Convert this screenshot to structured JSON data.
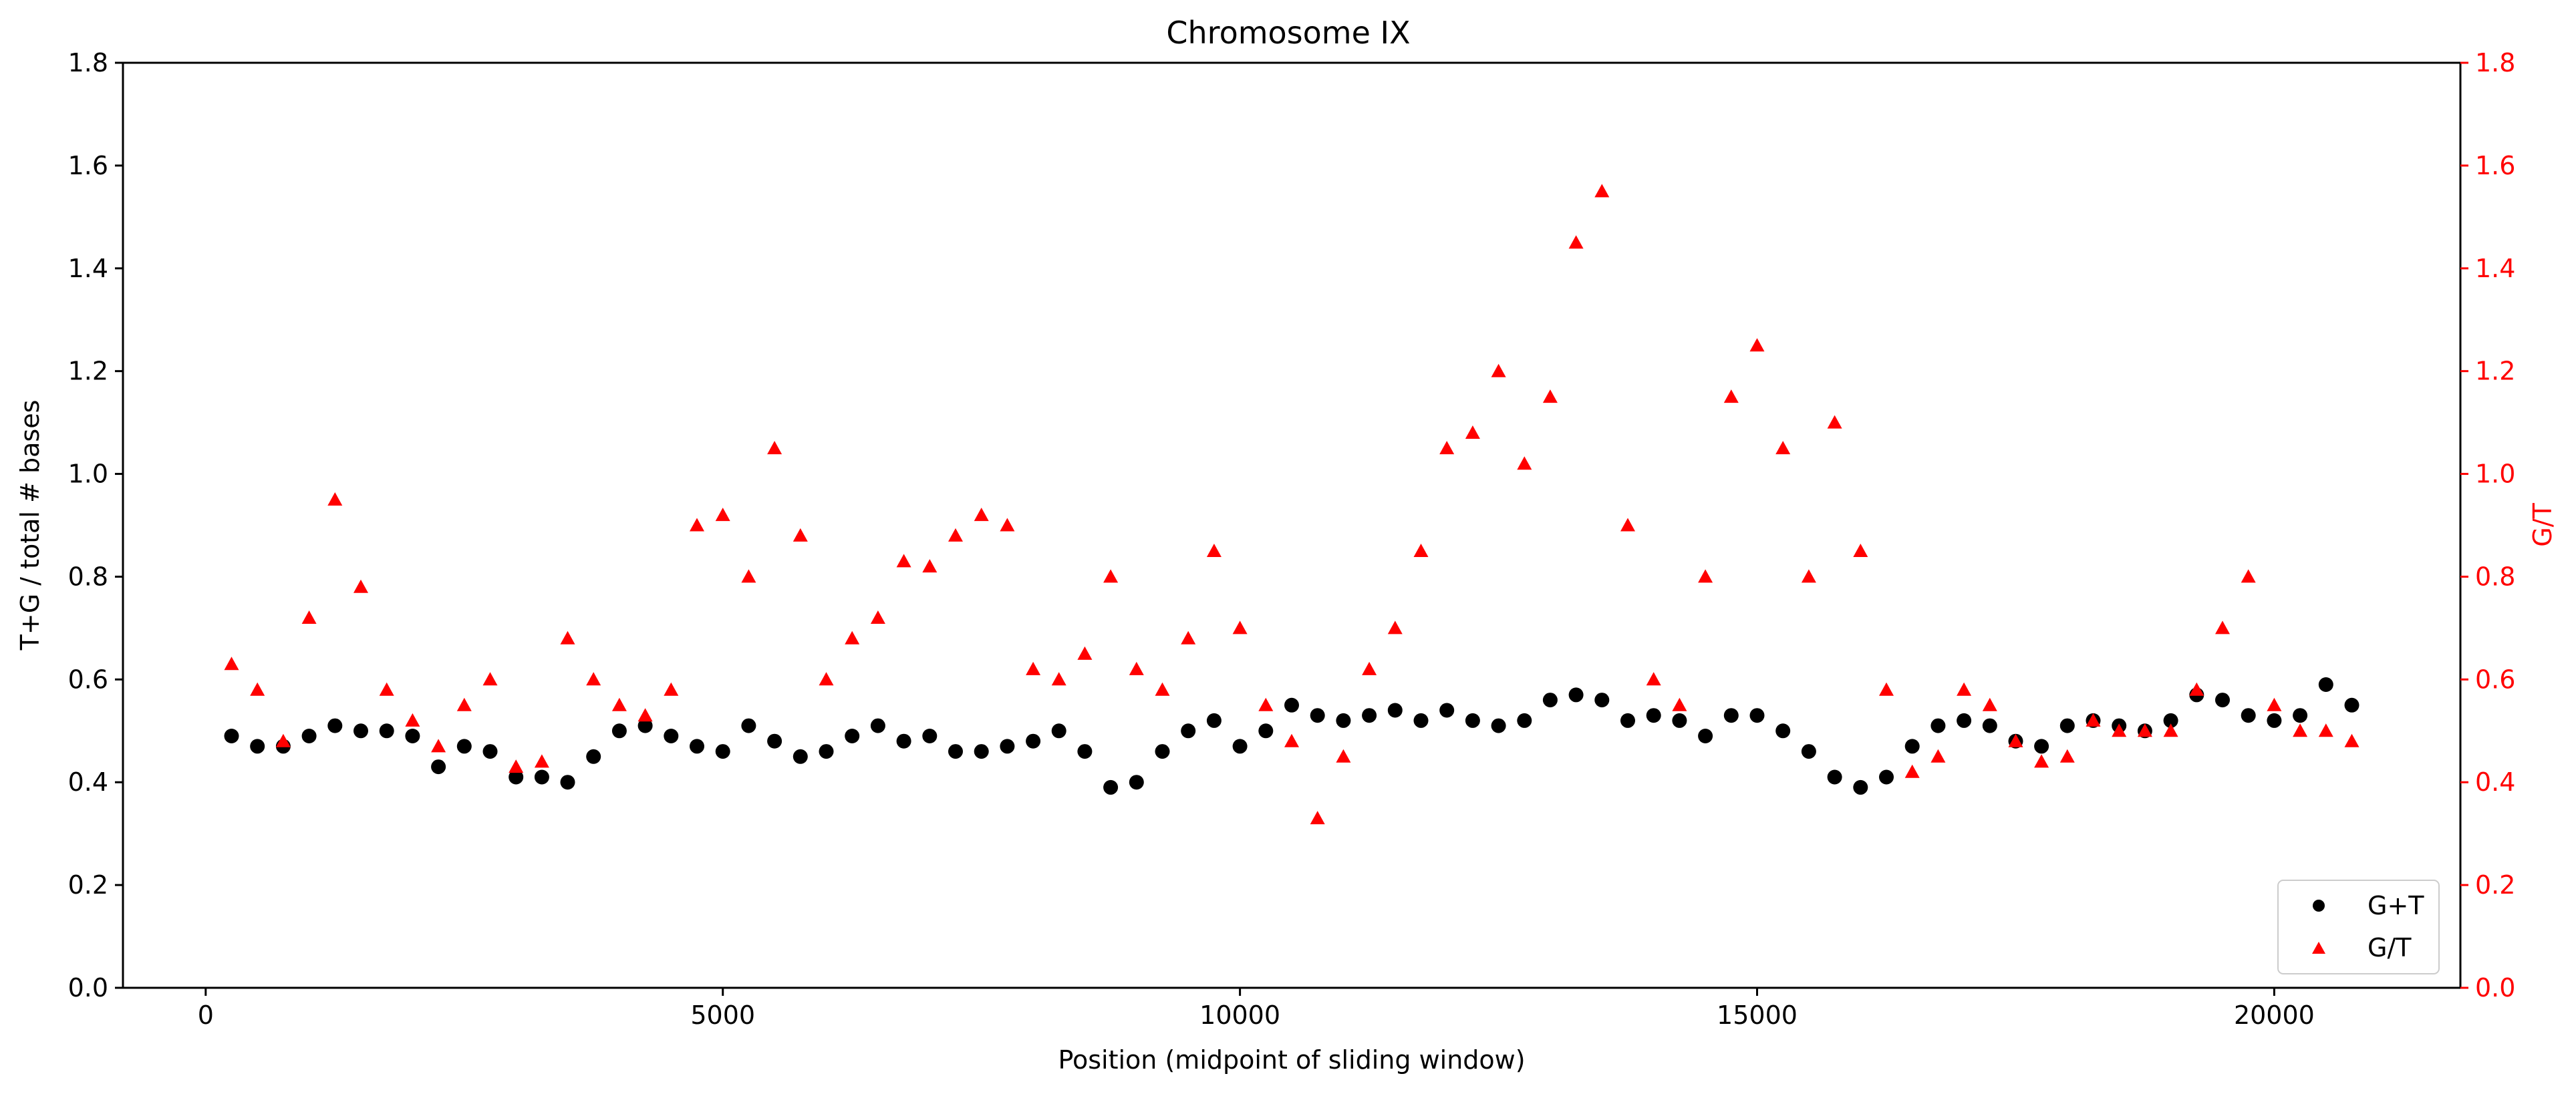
{
  "chart_data": {
    "type": "scatter",
    "title": "Chromosome IX",
    "xlabel": "Position (midpoint of sliding window)",
    "ylabel_left": "T+G / total # bases",
    "ylabel_right": "G/T",
    "xlim": [
      -800,
      21800
    ],
    "ylim": [
      0,
      1.8
    ],
    "x_ticks": [
      0,
      5000,
      10000,
      15000,
      20000
    ],
    "y_ticks": [
      0.0,
      0.2,
      0.4,
      0.6,
      0.8,
      1.0,
      1.2,
      1.4,
      1.6,
      1.8
    ],
    "right_axis_color": "#ff0000",
    "legend_position": "lower-right",
    "series": [
      {
        "name": "G+T",
        "marker": "circle",
        "color": "#000000",
        "axis": "left",
        "x": [
          250,
          500,
          750,
          1000,
          1250,
          1500,
          1750,
          2000,
          2250,
          2500,
          2750,
          3000,
          3250,
          3500,
          3750,
          4000,
          4250,
          4500,
          4750,
          5000,
          5250,
          5500,
          5750,
          6000,
          6250,
          6500,
          6750,
          7000,
          7250,
          7500,
          7750,
          8000,
          8250,
          8500,
          8750,
          9000,
          9250,
          9500,
          9750,
          10000,
          10250,
          10500,
          10750,
          11000,
          11250,
          11500,
          11750,
          12000,
          12250,
          12500,
          12750,
          13000,
          13250,
          13500,
          13750,
          14000,
          14250,
          14500,
          14750,
          15000,
          15250,
          15500,
          15750,
          16000,
          16250,
          16500,
          16750,
          17000,
          17250,
          17500,
          17750,
          18000,
          18250,
          18500,
          18750,
          19000,
          19250,
          19500,
          19750,
          20000,
          20250,
          20500,
          20750
        ],
        "y": [
          0.49,
          0.47,
          0.47,
          0.49,
          0.51,
          0.5,
          0.5,
          0.49,
          0.43,
          0.47,
          0.46,
          0.41,
          0.41,
          0.4,
          0.45,
          0.5,
          0.51,
          0.49,
          0.47,
          0.46,
          0.51,
          0.48,
          0.45,
          0.46,
          0.49,
          0.51,
          0.48,
          0.49,
          0.46,
          0.46,
          0.47,
          0.48,
          0.5,
          0.46,
          0.39,
          0.4,
          0.46,
          0.5,
          0.52,
          0.47,
          0.5,
          0.55,
          0.53,
          0.52,
          0.53,
          0.54,
          0.52,
          0.54,
          0.52,
          0.51,
          0.52,
          0.56,
          0.57,
          0.56,
          0.52,
          0.53,
          0.52,
          0.49,
          0.53,
          0.53,
          0.5,
          0.46,
          0.41,
          0.39,
          0.41,
          0.47,
          0.51,
          0.52,
          0.51,
          0.48,
          0.47,
          0.51,
          0.52,
          0.51,
          0.5,
          0.52,
          0.57,
          0.56,
          0.53,
          0.52,
          0.53,
          0.59,
          0.55
        ]
      },
      {
        "name": "G/T",
        "marker": "triangle",
        "color": "#ff0000",
        "axis": "right",
        "x": [
          250,
          500,
          750,
          1000,
          1250,
          1500,
          1750,
          2000,
          2250,
          2500,
          2750,
          3000,
          3250,
          3500,
          3750,
          4000,
          4250,
          4500,
          4750,
          5000,
          5250,
          5500,
          5750,
          6000,
          6250,
          6500,
          6750,
          7000,
          7250,
          7500,
          7750,
          8000,
          8250,
          8500,
          8750,
          9000,
          9250,
          9500,
          9750,
          10000,
          10250,
          10500,
          10750,
          11000,
          11250,
          11500,
          11750,
          12000,
          12250,
          12500,
          12750,
          13000,
          13250,
          13500,
          13750,
          14000,
          14250,
          14500,
          14750,
          15000,
          15250,
          15500,
          15750,
          16000,
          16250,
          16500,
          16750,
          17000,
          17250,
          17500,
          17750,
          18000,
          18250,
          18500,
          18750,
          19000,
          19250,
          19500,
          19750,
          20000,
          20250,
          20500,
          20750
        ],
        "y": [
          0.63,
          0.58,
          0.48,
          0.72,
          0.95,
          0.78,
          0.58,
          0.52,
          0.47,
          0.55,
          0.6,
          0.43,
          0.44,
          0.68,
          0.6,
          0.55,
          0.53,
          0.58,
          0.9,
          0.92,
          0.8,
          1.05,
          0.88,
          0.6,
          0.68,
          0.72,
          0.83,
          0.82,
          0.88,
          0.92,
          0.9,
          0.62,
          0.6,
          0.65,
          0.8,
          0.62,
          0.58,
          0.68,
          0.85,
          0.7,
          0.55,
          0.48,
          0.33,
          0.45,
          0.62,
          0.7,
          0.85,
          1.05,
          1.08,
          1.2,
          1.02,
          1.15,
          1.45,
          1.55,
          0.9,
          0.6,
          0.55,
          0.8,
          1.15,
          1.25,
          1.05,
          0.8,
          1.1,
          0.85,
          0.58,
          0.42,
          0.45,
          0.58,
          0.55,
          0.48,
          0.44,
          0.45,
          0.52,
          0.5,
          0.5,
          0.5,
          0.58,
          0.7,
          0.8,
          0.55,
          0.5,
          0.5,
          0.48
        ]
      }
    ]
  }
}
